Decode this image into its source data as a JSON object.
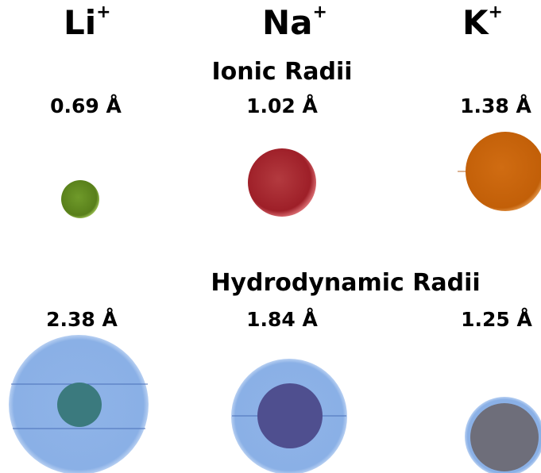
{
  "ions": [
    {
      "symbol": "Li",
      "charge": "+"
    },
    {
      "symbol": "Na",
      "charge": "+"
    },
    {
      "symbol": "K",
      "charge": "+"
    }
  ],
  "ionic": {
    "title": "Ionic Radii",
    "radii": [
      {
        "label": "0.69 Å",
        "value": 0.69
      },
      {
        "label": "1.02 Å",
        "value": 1.02
      },
      {
        "label": "1.38 Å",
        "value": 1.38
      }
    ]
  },
  "hydrodynamic": {
    "title": "Hydrodynamic Radii",
    "radii": [
      {
        "label": "2.38 Å",
        "value": 2.38
      },
      {
        "label": "1.84 Å",
        "value": 1.84
      },
      {
        "label": "1.25 Å",
        "value": 1.25
      }
    ]
  },
  "colors": {
    "li_ion": "#5e8a1e",
    "na_ion": "#a8232b",
    "k_ion": "#c8620b",
    "hydration_shell": "#8fb2e6",
    "li_core": "#3b7a7e",
    "na_core": "#4f4f8f",
    "k_core": "#6e6e7a"
  }
}
